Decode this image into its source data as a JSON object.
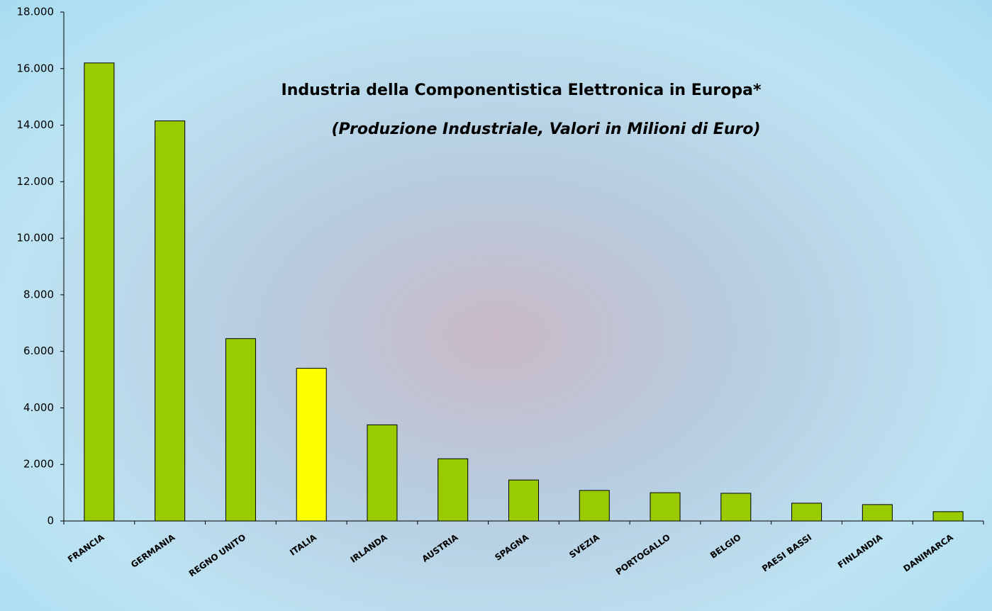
{
  "chart_data": {
    "type": "bar",
    "title": "Industria della Componentistica Elettronica in Europa*",
    "subtitle": "(Produzione Industriale, Valori in Milioni di Euro)",
    "categories": [
      "FRANCIA",
      "GERMANIA",
      "REGNO UNITO",
      "ITALIA",
      "IRLANDA",
      "AUSTRIA",
      "SPAGNA",
      "SVEZIA",
      "PORTOGALLO",
      "BELGIO",
      "PAESI BASSI",
      "FINLANDIA",
      "DANIMARCA"
    ],
    "values": [
      16200,
      14150,
      6450,
      5400,
      3400,
      2200,
      1450,
      1080,
      1000,
      980,
      630,
      580,
      330
    ],
    "colors": [
      "#99cc00",
      "#99cc00",
      "#99cc00",
      "#ffff00",
      "#99cc00",
      "#99cc00",
      "#99cc00",
      "#99cc00",
      "#99cc00",
      "#99cc00",
      "#99cc00",
      "#99cc00",
      "#99cc00"
    ],
    "ylim": [
      0,
      18000
    ],
    "yticks": [
      0,
      {
        "value": 2000,
        "label": "2.000"
      },
      {
        "value": 4000,
        "label": "4.000"
      },
      {
        "value": 6000,
        "label": "6.000"
      },
      {
        "value": 8000,
        "label": "8.000"
      },
      {
        "value": 10000,
        "label": "10.000"
      },
      {
        "value": 12000,
        "label": "12.000"
      },
      {
        "value": 14000,
        "label": "14.000"
      },
      {
        "value": 16000,
        "label": "16.000"
      },
      {
        "value": 18000,
        "label": "18.000"
      }
    ],
    "grid": false
  }
}
